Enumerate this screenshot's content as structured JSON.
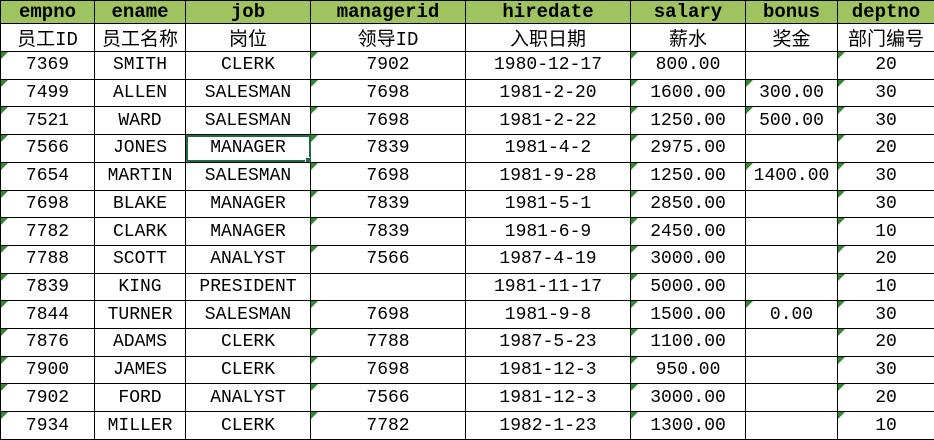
{
  "colors": {
    "header_bg": "#9fc45f",
    "grid": "#000000",
    "indicator": "#2e8b2e",
    "selection": "#1e6b45",
    "cell_bg": "#ffffff",
    "text": "#000000"
  },
  "table": {
    "columns": [
      {
        "key": "empno",
        "label": "empno",
        "label_zh": "员工ID",
        "width": 94,
        "indicator": true
      },
      {
        "key": "ename",
        "label": "ename",
        "label_zh": "员工名称",
        "width": 91,
        "indicator": false
      },
      {
        "key": "job",
        "label": "job",
        "label_zh": "岗位",
        "width": 125,
        "indicator": false
      },
      {
        "key": "managerid",
        "label": "managerid",
        "label_zh": "领导ID",
        "width": 155,
        "indicator": true
      },
      {
        "key": "hiredate",
        "label": "hiredate",
        "label_zh": "入职日期",
        "width": 165,
        "indicator": false
      },
      {
        "key": "salary",
        "label": "salary",
        "label_zh": "薪水",
        "width": 115,
        "indicator": true
      },
      {
        "key": "bonus",
        "label": "bonus",
        "label_zh": "奖金",
        "width": 92,
        "indicator": true
      },
      {
        "key": "deptno",
        "label": "deptno",
        "label_zh": "部门编号",
        "width": 97,
        "indicator": true
      }
    ],
    "rows": [
      [
        "7369",
        "SMITH",
        "CLERK",
        "7902",
        "1980-12-17",
        "800.00",
        "",
        "20"
      ],
      [
        "7499",
        "ALLEN",
        "SALESMAN",
        "7698",
        "1981-2-20",
        "1600.00",
        "300.00",
        "30"
      ],
      [
        "7521",
        "WARD",
        "SALESMAN",
        "7698",
        "1981-2-22",
        "1250.00",
        "500.00",
        "30"
      ],
      [
        "7566",
        "JONES",
        "MANAGER",
        "7839",
        "1981-4-2",
        "2975.00",
        "",
        "20"
      ],
      [
        "7654",
        "MARTIN",
        "SALESMAN",
        "7698",
        "1981-9-28",
        "1250.00",
        "1400.00",
        "30"
      ],
      [
        "7698",
        "BLAKE",
        "MANAGER",
        "7839",
        "1981-5-1",
        "2850.00",
        "",
        "30"
      ],
      [
        "7782",
        "CLARK",
        "MANAGER",
        "7839",
        "1981-6-9",
        "2450.00",
        "",
        "10"
      ],
      [
        "7788",
        "SCOTT",
        "ANALYST",
        "7566",
        "1987-4-19",
        "3000.00",
        "",
        "20"
      ],
      [
        "7839",
        "KING",
        "PRESIDENT",
        "",
        "1981-11-17",
        "5000.00",
        "",
        "10"
      ],
      [
        "7844",
        "TURNER",
        "SALESMAN",
        "7698",
        "1981-9-8",
        "1500.00",
        "0.00",
        "30"
      ],
      [
        "7876",
        "ADAMS",
        "CLERK",
        "7788",
        "1987-5-23",
        "1100.00",
        "",
        "20"
      ],
      [
        "7900",
        "JAMES",
        "CLERK",
        "7698",
        "1981-12-3",
        "950.00",
        "",
        "30"
      ],
      [
        "7902",
        "FORD",
        "ANALYST",
        "7566",
        "1981-12-3",
        "3000.00",
        "",
        "20"
      ],
      [
        "7934",
        "MILLER",
        "CLERK",
        "7782",
        "1982-1-23",
        "1300.00",
        "",
        "10"
      ]
    ],
    "selection": {
      "row": 3,
      "col": 2
    }
  }
}
